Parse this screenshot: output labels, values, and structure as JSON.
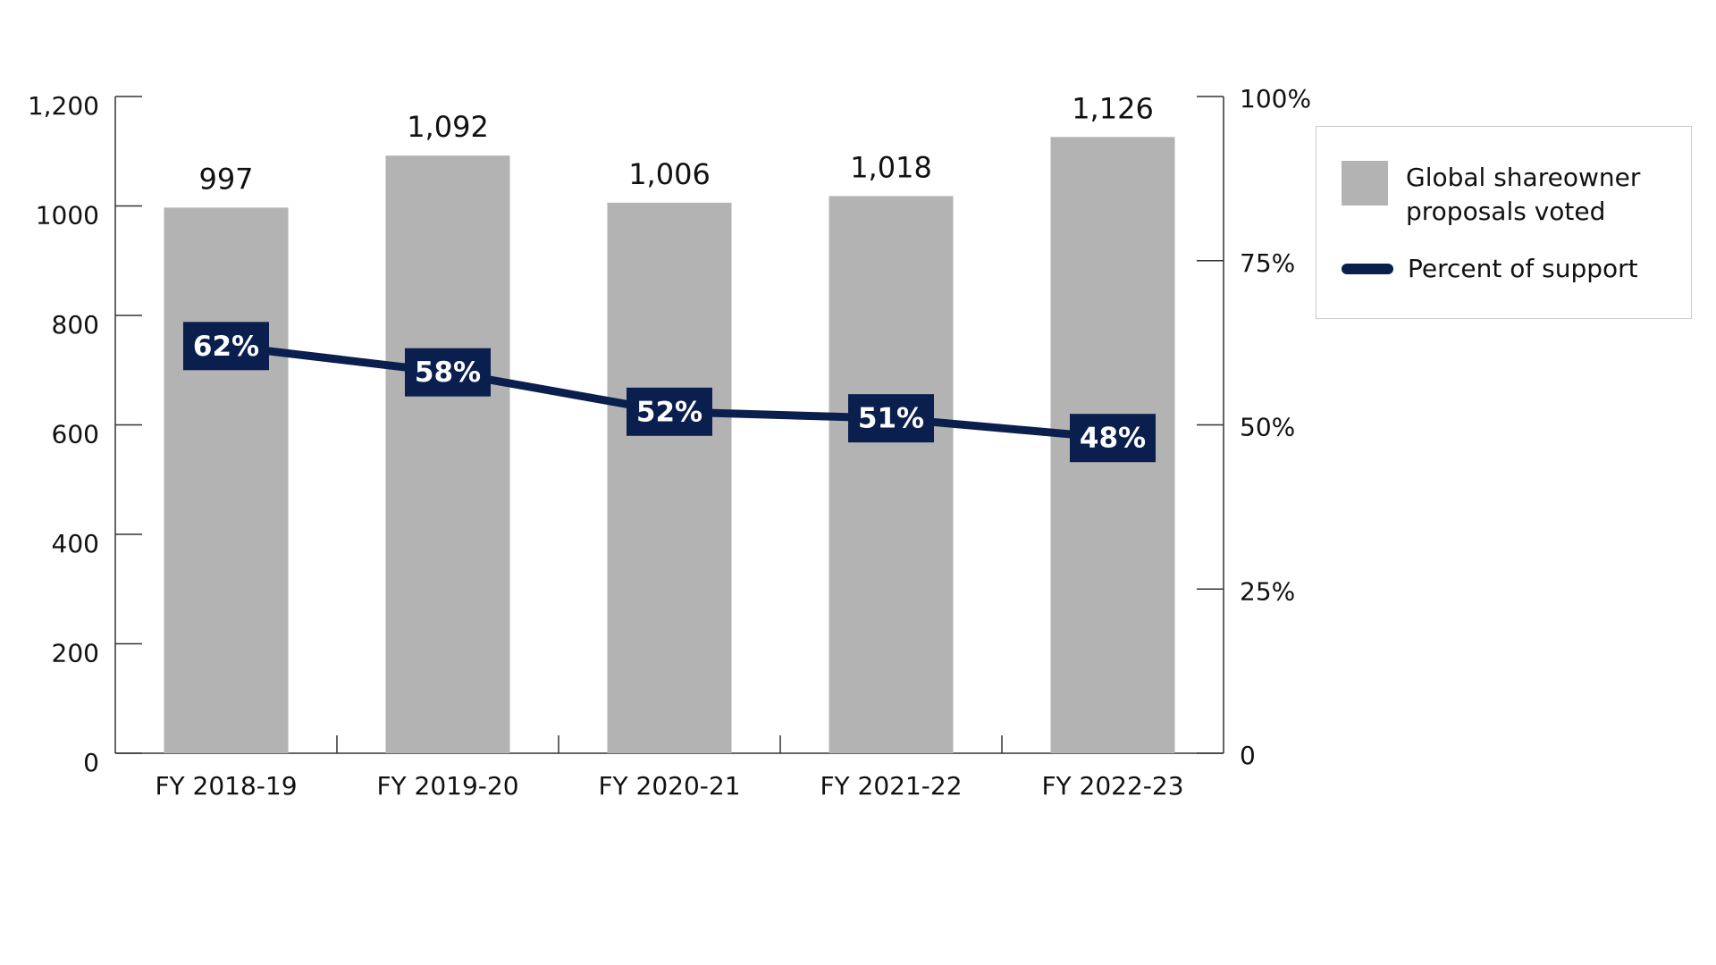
{
  "chart_data": {
    "type": "combo",
    "categories": [
      "FY 2018-19",
      "FY 2019-20",
      "FY 2020-21",
      "FY 2021-22",
      "FY 2022-23"
    ],
    "series": [
      {
        "name": "Global shareowner proposals voted",
        "type": "bar",
        "color": "#b3b3b3",
        "values": [
          997,
          1092,
          1006,
          1018,
          1126
        ],
        "value_labels": [
          "997",
          "1,092",
          "1,006",
          "1,018",
          "1,126"
        ]
      },
      {
        "name": "Percent of support",
        "type": "line",
        "axis": "y2",
        "color": "#0a1f4d",
        "values": [
          62,
          58,
          52,
          51,
          48
        ],
        "value_labels": [
          "62%",
          "58%",
          "52%",
          "51%",
          "48%"
        ]
      }
    ],
    "ylim": [
      0,
      1200
    ],
    "yticks": [
      0,
      200,
      400,
      600,
      800,
      1000,
      {
        "value": 1200,
        "label": "1,200"
      }
    ],
    "y2lim": [
      0,
      100
    ],
    "y2ticks": [
      0,
      {
        "value": 25,
        "label": "25%"
      },
      {
        "value": 50,
        "label": "50%"
      },
      {
        "value": 75,
        "label": "75%"
      },
      {
        "value": 100,
        "label": "100%"
      }
    ],
    "grid": false,
    "legend": "upper-right"
  }
}
